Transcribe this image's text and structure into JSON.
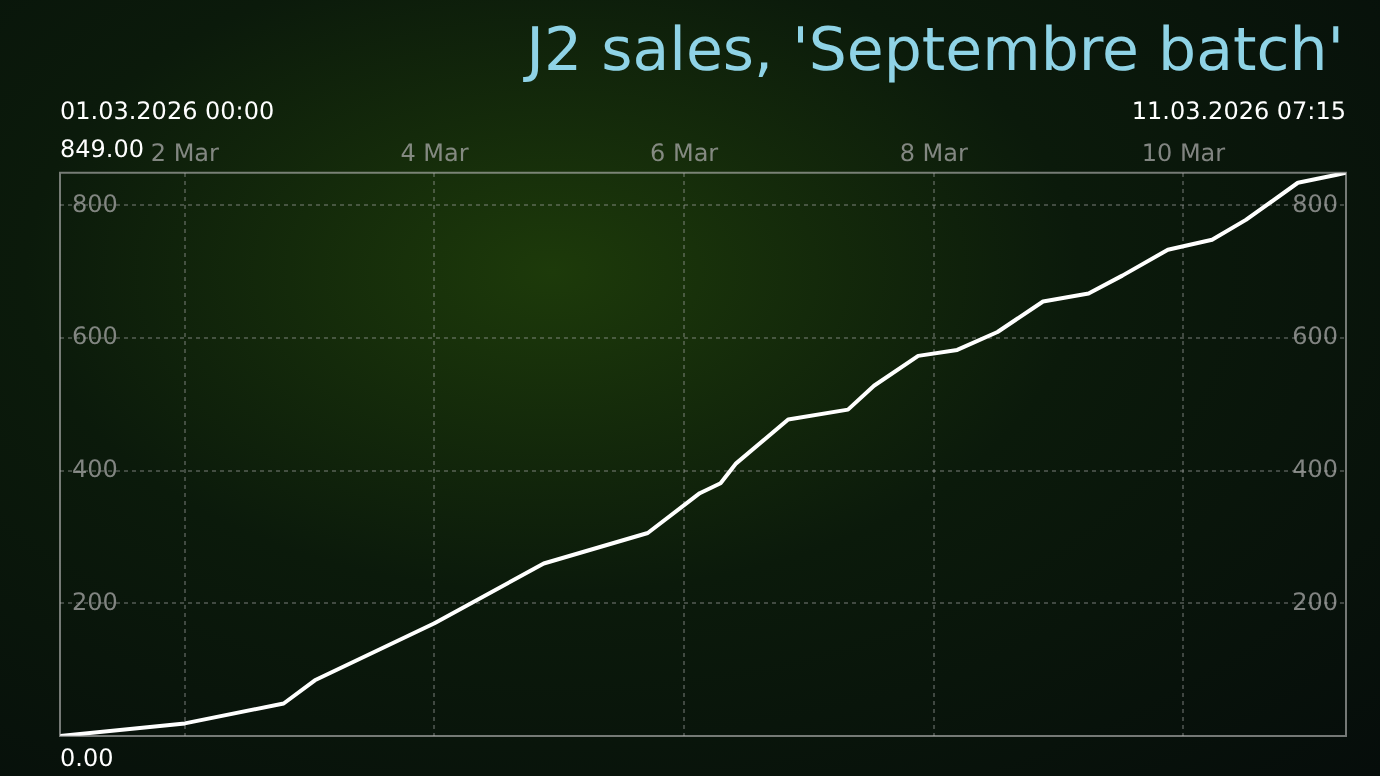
{
  "chart_data": {
    "type": "line",
    "title": "J2 sales, 'Septembre batch'",
    "annotations": [
      "01.03.2026 00:00",
      "11.03.2026 07:15",
      "849.00",
      "0.00"
    ],
    "x": [
      "2026-03-01T00:00",
      "2026-03-02T00:00",
      "2026-03-02T19:00",
      "2026-03-03T01:00",
      "2026-03-04T00:00",
      "2026-03-04T21:00",
      "2026-03-05T17:00",
      "2026-03-06T03:00",
      "2026-03-06T07:00",
      "2026-03-06T10:00",
      "2026-03-06T20:00",
      "2026-03-07T07:30",
      "2026-03-07T12:30",
      "2026-03-07T21:00",
      "2026-03-08T04:30",
      "2026-03-08T12:15",
      "2026-03-08T21:00",
      "2026-03-09T05:45",
      "2026-03-09T12:15",
      "2026-03-09T21:00",
      "2026-03-10T05:30",
      "2026-03-10T12:00",
      "2026-03-10T22:00",
      "2026-03-11T05:30",
      "2026-03-11T07:15"
    ],
    "series": [
      {
        "color": "#ffffff",
        "values": [
          0,
          19,
          49,
          84,
          170,
          260,
          306,
          366,
          381,
          411,
          477,
          492,
          528,
          573,
          582,
          609,
          655,
          667,
          694,
          733,
          748,
          778,
          834,
          846,
          849
        ]
      }
    ],
    "xlim": [
      "2026-03-01T00:00",
      "2026-03-11T07:15"
    ],
    "xticks": [
      {
        "value": "2026-03-02T00:00",
        "label": "2 Mar"
      },
      {
        "value": "2026-03-04T00:00",
        "label": "4 Mar"
      },
      {
        "value": "2026-03-06T00:00",
        "label": "6 Mar"
      },
      {
        "value": "2026-03-08T00:00",
        "label": "8 Mar"
      },
      {
        "value": "2026-03-10T00:00",
        "label": "10 Mar"
      }
    ],
    "ylim": [
      0,
      849
    ],
    "yticks": [
      200,
      400,
      600,
      800
    ],
    "y2lim": [
      0,
      849
    ],
    "y2ticks": [
      200,
      400,
      600,
      800
    ],
    "grid": true,
    "legend": false,
    "marker": "none",
    "line_style": "solid"
  }
}
